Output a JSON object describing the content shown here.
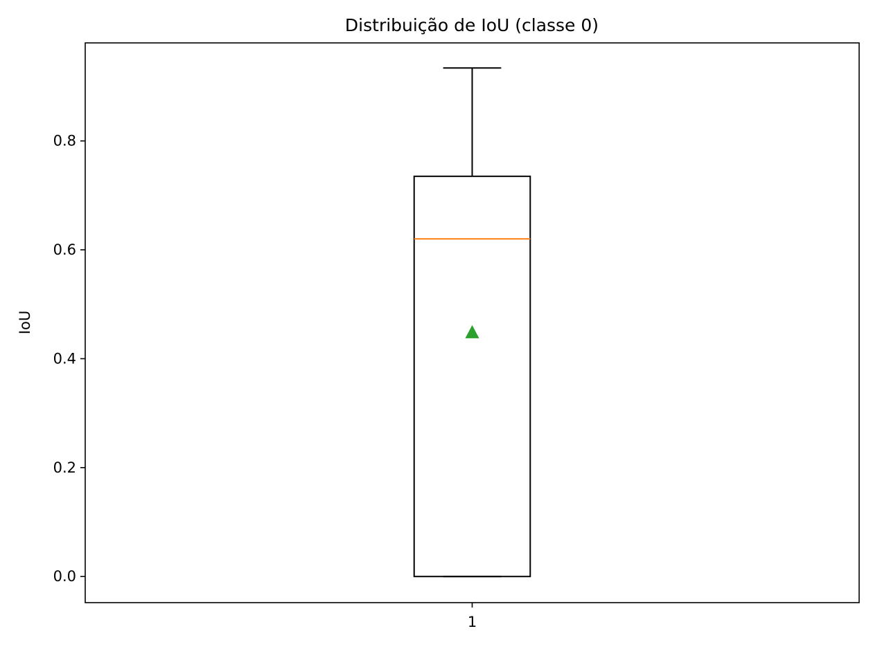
{
  "chart_data": {
    "type": "box",
    "title": "Distribuição de IoU (classe 0)",
    "xlabel": "",
    "ylabel": "IoU",
    "ylim": [
      -0.048,
      0.98
    ],
    "xlim": [
      0.5,
      1.5
    ],
    "yticks": [
      0.0,
      0.2,
      0.4,
      0.6,
      0.8
    ],
    "ytick_labels": [
      "0.0",
      "0.2",
      "0.4",
      "0.6",
      "0.8"
    ],
    "categories": [
      "1"
    ],
    "boxes": [
      {
        "label": "1",
        "whisker_low": 0.0,
        "q1": 0.0,
        "median": 0.62,
        "q3": 0.735,
        "whisker_high": 0.934,
        "mean": 0.449
      }
    ],
    "grid": false,
    "colors": {
      "box": "#000000",
      "median": "#ff7f0e",
      "mean": "#2ca02c"
    }
  }
}
